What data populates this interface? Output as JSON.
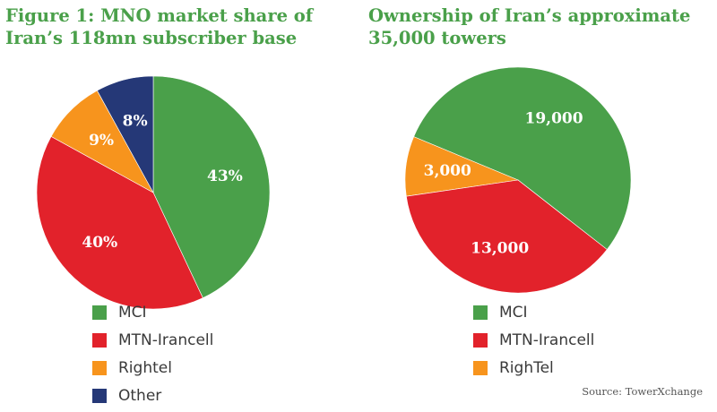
{
  "source": "Source: TowerXchange",
  "chart_data": [
    {
      "type": "pie",
      "title": "Figure 1: MNO market share of Iran’s 118mn subscriber base",
      "title_lines": [
        "Figure 1: MNO market share of",
        "Iran’s 118mn subscriber base"
      ],
      "title_color": "#4aa04a",
      "start_angle_deg": 0,
      "direction": "clockwise",
      "legend_position": "bottom",
      "series": [
        {
          "name": "MCI",
          "value": 43,
          "label": "43%",
          "color": "#4aa04a"
        },
        {
          "name": "MTN-Irancell",
          "value": 40,
          "label": "40%",
          "color": "#e2222b"
        },
        {
          "name": "Rightel",
          "value": 9,
          "label": "9%",
          "color": "#f7941d"
        },
        {
          "name": "Other",
          "value": 8,
          "label": "8%",
          "color": "#253877"
        }
      ]
    },
    {
      "type": "pie",
      "title": "Ownership of Iran’s approximate 35,000 towers",
      "title_lines": [
        "Ownership of Iran’s approximate",
        "35,000 towers"
      ],
      "title_color": "#4aa04a",
      "start_angle_deg": 128,
      "direction": "counterclockwise",
      "legend_position": "bottom",
      "series": [
        {
          "name": "MCI",
          "value": 19000,
          "label": "19,000",
          "color": "#4aa04a"
        },
        {
          "name": "RighTel",
          "value": 3000,
          "label": "3,000",
          "color": "#f7941d"
        },
        {
          "name": "MTN-Irancell",
          "value": 13000,
          "label": "13,000",
          "color": "#e2222b"
        }
      ],
      "legend": [
        {
          "name": "MCI",
          "color": "#4aa04a"
        },
        {
          "name": "MTN-Irancell",
          "color": "#e2222b"
        },
        {
          "name": "RighTel",
          "color": "#f7941d"
        }
      ]
    }
  ]
}
